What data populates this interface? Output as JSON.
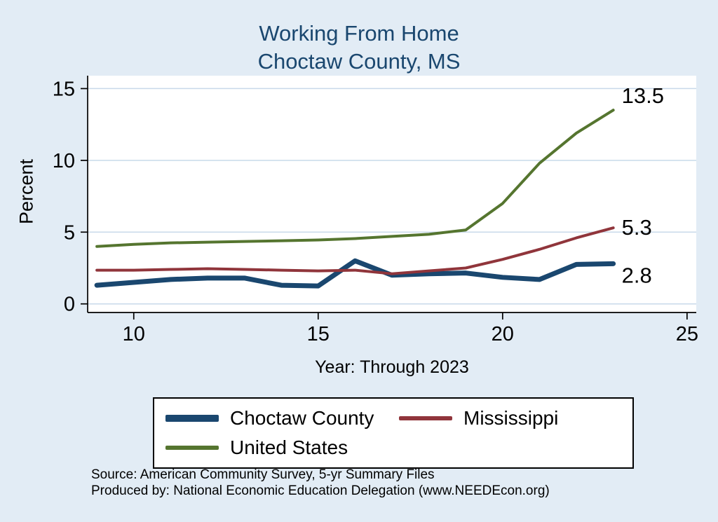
{
  "title": {
    "line1": "Working From Home",
    "line2": "Choctaw County, MS"
  },
  "chart_data": {
    "type": "line",
    "title": "Working From Home — Choctaw County, MS",
    "xlabel": "Year: Through 2023",
    "ylabel": "Percent",
    "x": [
      9,
      10,
      11,
      12,
      13,
      14,
      15,
      16,
      17,
      18,
      19,
      20,
      21,
      22,
      23
    ],
    "xticks": [
      10,
      15,
      20,
      25
    ],
    "yticks": [
      0,
      5,
      10,
      15
    ],
    "xlim": [
      8.75,
      25.25
    ],
    "ylim": [
      0,
      15
    ],
    "grid": true,
    "legend_position": "bottom",
    "series": [
      {
        "name": "Choctaw County",
        "color": "#1a476f",
        "width": 7,
        "end_label": "2.8",
        "label_dy": 17,
        "values": [
          1.3,
          1.5,
          1.7,
          1.8,
          1.8,
          1.3,
          1.25,
          3.0,
          2.0,
          2.1,
          2.15,
          1.85,
          1.7,
          2.75,
          2.8
        ]
      },
      {
        "name": "Mississippi",
        "color": "#90353b",
        "width": 4,
        "end_label": "5.3",
        "label_dy": 0,
        "values": [
          2.35,
          2.35,
          2.4,
          2.45,
          2.4,
          2.35,
          2.3,
          2.35,
          2.1,
          2.3,
          2.5,
          3.1,
          3.8,
          4.6,
          5.3
        ]
      },
      {
        "name": "United States",
        "color": "#55752f",
        "width": 4,
        "end_label": "13.5",
        "label_dy": -20,
        "values": [
          4.0,
          4.15,
          4.25,
          4.3,
          4.35,
          4.4,
          4.45,
          4.55,
          4.7,
          4.85,
          5.15,
          7.0,
          9.8,
          11.9,
          13.5
        ]
      }
    ]
  },
  "footer": {
    "source": "Source: American Community Survey, 5-yr Summary Files",
    "produced": "Produced by: National Economic Education Delegation (www.NEEDEcon.org)"
  },
  "colors": {
    "background": "#e2ecf5",
    "plot_background": "#ffffff",
    "grid": "#c8d9ea",
    "axis": "#000000",
    "title": "#1a476f",
    "text": "#000000"
  }
}
